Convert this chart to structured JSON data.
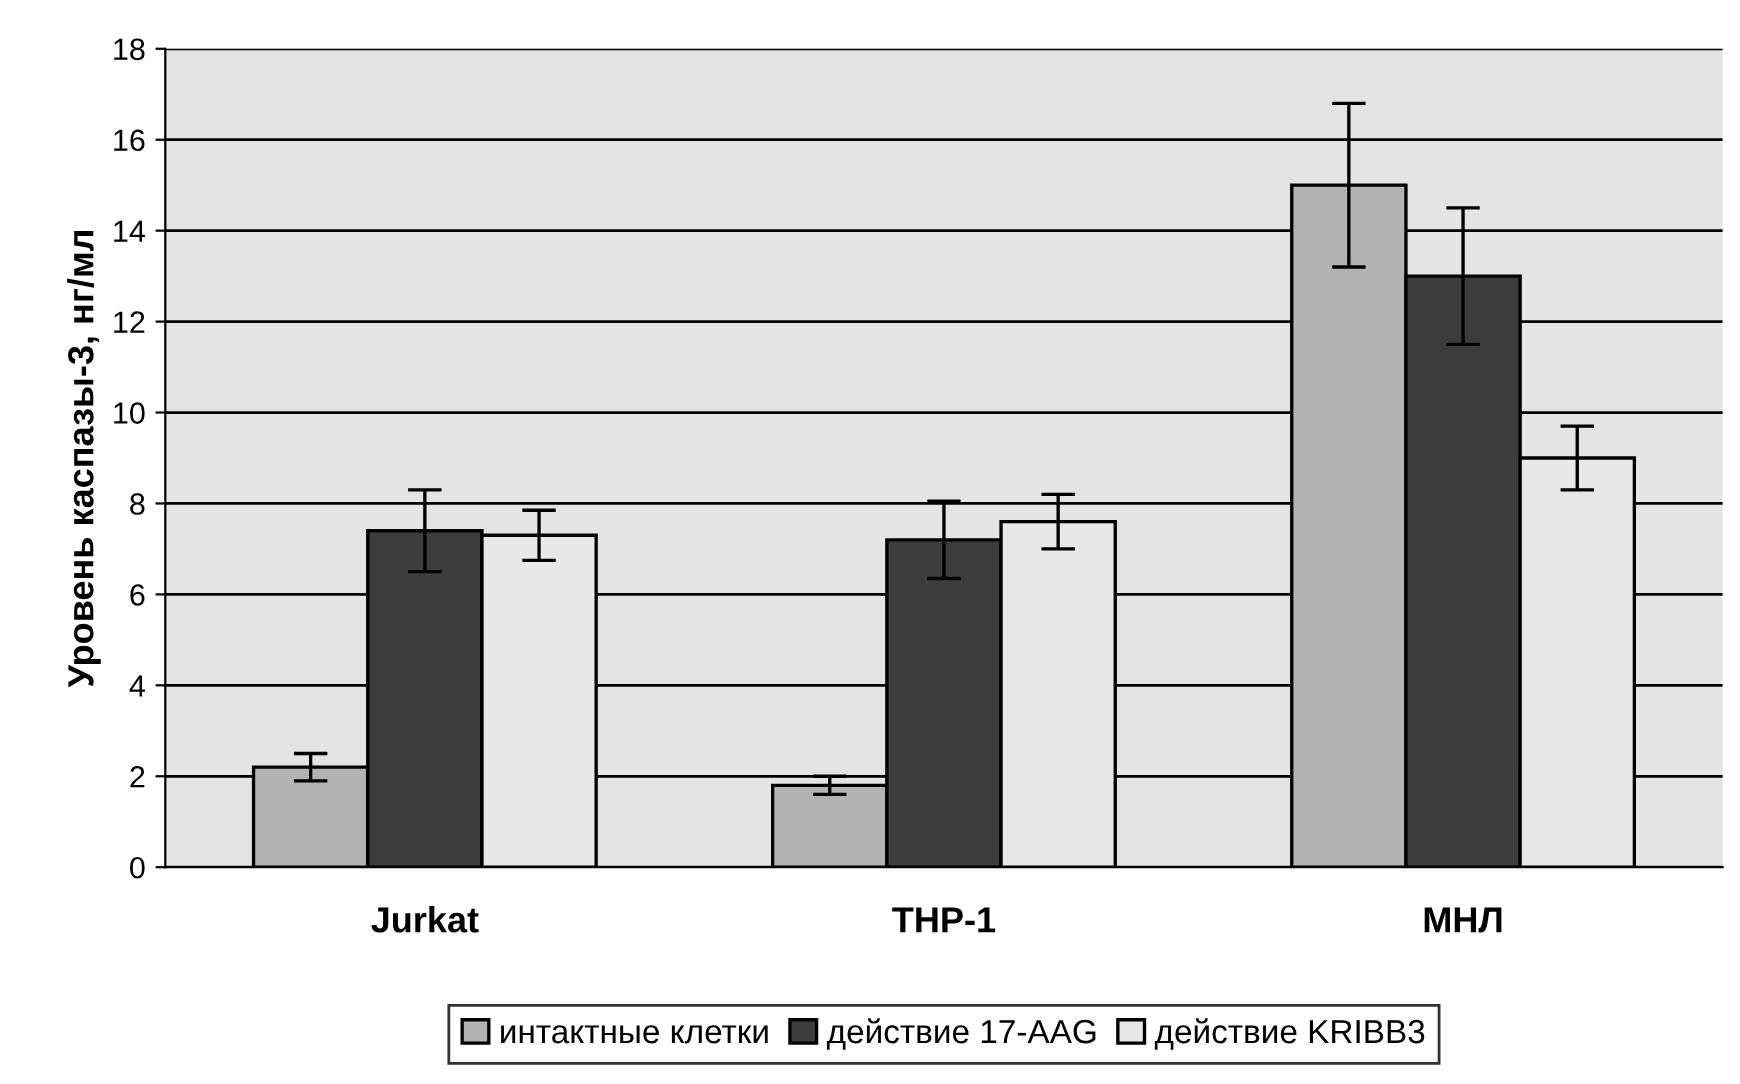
{
  "chart_data": {
    "type": "bar",
    "ylabel": "Уровень каспазы-3, нг/мл",
    "categories": [
      "Jurkat",
      "THP-1",
      "МНЛ"
    ],
    "series": [
      {
        "name": "интактные клетки",
        "color": "#b3b3b3",
        "values": [
          2.2,
          1.8,
          15.0
        ],
        "errors": [
          0.3,
          0.2,
          1.8
        ]
      },
      {
        "name": "действие 17-AAG",
        "color": "#3c3c3c",
        "values": [
          7.4,
          7.2,
          13.0
        ],
        "errors": [
          0.9,
          0.85,
          1.5
        ]
      },
      {
        "name": "действие KRIBB3",
        "color": "#e8e8e8",
        "values": [
          7.3,
          7.6,
          9.0
        ],
        "errors": [
          0.55,
          0.6,
          0.7
        ]
      }
    ],
    "ylim": [
      0,
      18
    ],
    "yticks": [
      0,
      2,
      4,
      6,
      8,
      10,
      12,
      14,
      16,
      18
    ],
    "grid": "y",
    "legend": "bottom"
  }
}
